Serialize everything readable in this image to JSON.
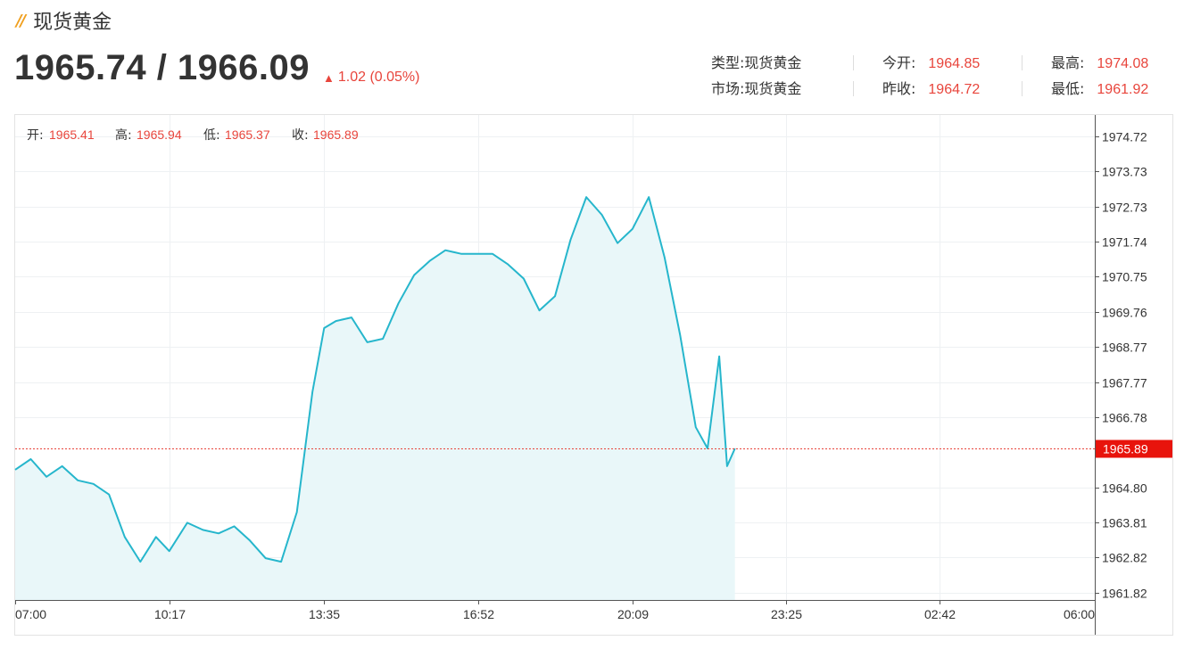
{
  "header": {
    "title_mark": "//",
    "title": "现货黄金",
    "price": "1965.74 / 1966.09",
    "change": "1.02 (0.05%)",
    "up_color": "#e8453c"
  },
  "info": {
    "type_label": "类型:",
    "type_value": "现货黄金",
    "open_label": "今开:",
    "open_value": "1964.85",
    "high_label": "最高:",
    "high_value": "1974.08",
    "market_label": "市场:",
    "market_value": "现货黄金",
    "prevclose_label": "昨收:",
    "prevclose_value": "1964.72",
    "low_label": "最低:",
    "low_value": "1961.92"
  },
  "ohlc": {
    "open_label": "开:",
    "open_value": "1965.41",
    "high_label": "高:",
    "high_value": "1965.94",
    "low_label": "低:",
    "low_value": "1965.37",
    "close_label": "收:",
    "close_value": "1965.89"
  },
  "chart_data": {
    "type": "area",
    "title": "",
    "xlabel": "",
    "ylabel": "",
    "ylim": [
      1961.62,
      1975.32
    ],
    "xlim": [
      "07:00",
      "06:00"
    ],
    "x_ticks": [
      "07:00",
      "10:17",
      "13:35",
      "16:52",
      "20:09",
      "23:25",
      "02:42",
      "06:00"
    ],
    "y_ticks": [
      "1974.72",
      "1973.73",
      "1972.73",
      "1971.74",
      "1970.75",
      "1969.76",
      "1968.77",
      "1967.77",
      "1966.78",
      "1964.80",
      "1963.81",
      "1962.82",
      "1961.82"
    ],
    "current_price": "1965.89",
    "current_value": 1965.89,
    "grid": true,
    "line_color": "#26b6cc",
    "fill_color": "#e9f7f9",
    "marker_color": "#e8453c",
    "series": [
      {
        "x": [
          "07:00",
          "07:20",
          "07:40",
          "08:00",
          "08:20",
          "08:40",
          "09:00",
          "09:20",
          "09:40",
          "10:00",
          "10:17",
          "10:40",
          "11:00",
          "11:20",
          "11:40",
          "12:00",
          "12:20",
          "12:40",
          "13:00",
          "13:20",
          "13:35",
          "13:50",
          "14:10",
          "14:30",
          "14:50",
          "15:10",
          "15:30",
          "15:50",
          "16:10",
          "16:30",
          "16:52",
          "17:10",
          "17:30",
          "17:50",
          "18:10",
          "18:30",
          "18:50",
          "19:10",
          "19:30",
          "19:50",
          "20:09",
          "20:30",
          "20:50",
          "21:10",
          "21:30",
          "21:45",
          "22:00",
          "22:10",
          "22:20"
        ],
        "values": [
          1965.3,
          1965.6,
          1965.1,
          1965.4,
          1965.0,
          1964.9,
          1964.6,
          1963.4,
          1962.7,
          1963.4,
          1963.0,
          1963.8,
          1963.6,
          1963.5,
          1963.7,
          1963.3,
          1962.8,
          1962.7,
          1964.1,
          1967.5,
          1969.3,
          1969.5,
          1969.6,
          1968.9,
          1969.0,
          1970.0,
          1970.8,
          1971.2,
          1971.5,
          1971.4,
          1971.4,
          1971.4,
          1971.1,
          1970.7,
          1969.8,
          1970.2,
          1971.8,
          1973.0,
          1972.5,
          1971.7,
          1972.1,
          1973.0,
          1971.3,
          1969.1,
          1966.5,
          1965.9,
          1968.5,
          1965.4,
          1965.9
        ]
      }
    ]
  }
}
